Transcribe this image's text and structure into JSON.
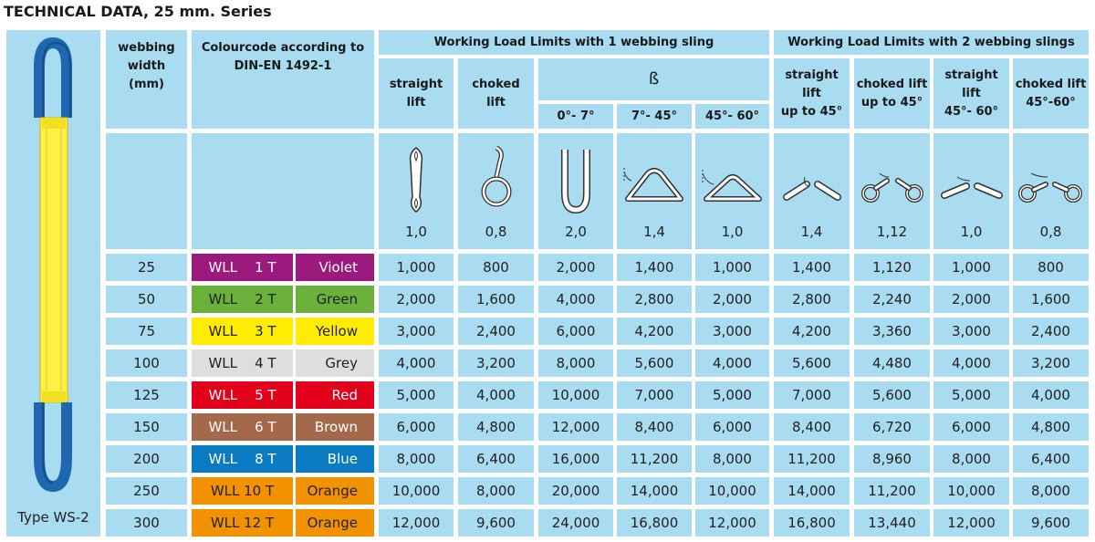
{
  "title": "TECHNICAL DATA, 25 mm. Series",
  "product": {
    "label": "Type WS-2",
    "icon": "webbing-sling-icon"
  },
  "headers": {
    "webbing_width": "webbing\nwidth\n(mm)",
    "colourcode": "Colourcode according to\nDIN-EN 1492-1",
    "wll_1": "Working Load Limits with 1 webbing sling",
    "wll_2": "Working Load Limits with 2 webbing slings",
    "straight_lift": "straight\nlift",
    "choked_lift": "choked\nlift",
    "beta": "ß",
    "angle_0_7": "0°- 7°",
    "angle_7_45": "7°- 45°",
    "angle_45_60": "45°- 60°",
    "straight_lift_45": "straight lift\nup to 45°",
    "choked_lift_45": "choked lift\nup to 45°",
    "straight_lift_45_60": "straight lift\n45°- 60°",
    "choked_lift_45_60": "choked lift\n45°-60°"
  },
  "factors": [
    "1,0",
    "0,8",
    "2,0",
    "1,4",
    "1,0",
    "1,4",
    "1,12",
    "1,0",
    "0,8"
  ],
  "factor_icons": [
    "straight-lift-icon",
    "choked-lift-icon",
    "basket-vertical-icon",
    "basket-7-45-icon",
    "basket-45-60-icon",
    "two-leg-straight-45-icon",
    "two-leg-choked-45-icon",
    "two-leg-straight-45-60-icon",
    "two-leg-choked-45-60-icon"
  ],
  "rows": [
    {
      "width": "25",
      "wll": "WLL    1 T",
      "colour": "Violet",
      "bg": "#9c1a7e",
      "text": "light",
      "values": [
        "1,000",
        "800",
        "2,000",
        "1,400",
        "1,000",
        "1,400",
        "1,120",
        "1,000",
        "800"
      ]
    },
    {
      "width": "50",
      "wll": "WLL    2 T",
      "colour": "Green",
      "bg": "#6bb03a",
      "text": "dark",
      "values": [
        "2,000",
        "1,600",
        "4,000",
        "2,800",
        "2,000",
        "2,800",
        "2,240",
        "2,000",
        "1,600"
      ]
    },
    {
      "width": "75",
      "wll": "WLL    3 T",
      "colour": "Yellow",
      "bg": "#ffec00",
      "text": "dark",
      "values": [
        "3,000",
        "2,400",
        "6,000",
        "4,200",
        "3,000",
        "4,200",
        "3,360",
        "3,000",
        "2,400"
      ]
    },
    {
      "width": "100",
      "wll": "WLL    4 T",
      "colour": "Grey",
      "bg": "#dedede",
      "text": "dark",
      "values": [
        "4,000",
        "3,200",
        "8,000",
        "5,600",
        "4,000",
        "5,600",
        "4,480",
        "4,000",
        "3,200"
      ]
    },
    {
      "width": "125",
      "wll": "WLL    5 T",
      "colour": "Red",
      "bg": "#e2001a",
      "text": "light",
      "values": [
        "5,000",
        "4,000",
        "10,000",
        "7,000",
        "5,000",
        "7,000",
        "5,600",
        "5,000",
        "4,000"
      ]
    },
    {
      "width": "150",
      "wll": "WLL    6 T",
      "colour": "Brown",
      "bg": "#a4684b",
      "text": "light",
      "values": [
        "6,000",
        "4,800",
        "12,000",
        "8,400",
        "6,000",
        "8,400",
        "6,720",
        "6,000",
        "4,800"
      ]
    },
    {
      "width": "200",
      "wll": "WLL    8 T",
      "colour": "Blue",
      "bg": "#0a7ac2",
      "text": "light",
      "values": [
        "8,000",
        "6,400",
        "16,000",
        "11,200",
        "8,000",
        "11,200",
        "8,960",
        "8,000",
        "6,400"
      ]
    },
    {
      "width": "250",
      "wll": "WLL 10 T",
      "colour": "Orange",
      "bg": "#f39200",
      "text": "dark",
      "values": [
        "10,000",
        "8,000",
        "20,000",
        "14,000",
        "10,000",
        "14,000",
        "11,200",
        "10,000",
        "8,000"
      ]
    },
    {
      "width": "300",
      "wll": "WLL 12 T",
      "colour": "Orange",
      "bg": "#f39200",
      "text": "dark",
      "values": [
        "12,000",
        "9,600",
        "24,000",
        "16,800",
        "12,000",
        "16,800",
        "13,440",
        "12,000",
        "9,600"
      ]
    }
  ]
}
